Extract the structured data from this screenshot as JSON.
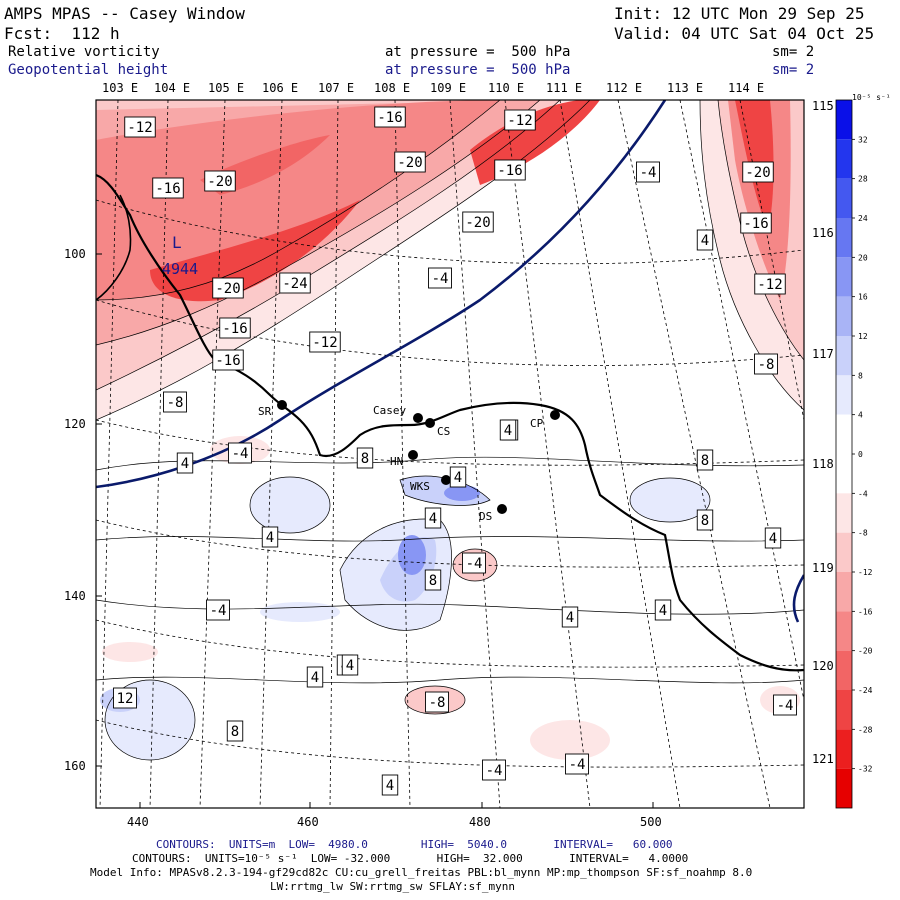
{
  "header": {
    "title": "AMPS MPAS -- Casey Window",
    "init": "Init: 12 UTC Mon 29 Sep 25",
    "fcst": "Fcst:  112 h",
    "valid": "Valid: 04 UTC Sat 04 Oct 25",
    "field1_name": "Relative vorticity",
    "field1_level": "at pressure =  500 hPa",
    "field1_sm": "sm= 2",
    "field2_name": "Geopotential height",
    "field2_level": "at pressure =  500 hPa",
    "field2_sm": "sm= 2"
  },
  "map": {
    "lon_labels_top": [
      "103 E",
      "104 E",
      "105 E",
      "106 E",
      "107 E",
      "108 E",
      "109 E",
      "110 E",
      "111 E",
      "112 E",
      "113 E",
      "114 E"
    ],
    "lon_labels_right": [
      "115 E",
      "116 E",
      "117 E",
      "118 E",
      "119 E",
      "120 E",
      "121 E"
    ],
    "x_ticks": [
      "440",
      "460",
      "480",
      "500"
    ],
    "y_ticks": [
      "100",
      "120",
      "140",
      "160"
    ],
    "stations": [
      {
        "code": "SR"
      },
      {
        "code": "Casey"
      },
      {
        "code": "CS"
      },
      {
        "code": "CP"
      },
      {
        "code": "HN"
      },
      {
        "code": "WKS"
      },
      {
        "code": "DS"
      }
    ],
    "low_center": {
      "symbol": "L",
      "value": "4944"
    },
    "contour_labels": [
      "-12",
      "-16",
      "-20",
      "-16",
      "-12",
      "-20",
      "-16",
      "-20",
      "-24",
      "-20",
      "-16",
      "-16",
      "-12",
      "-4",
      "-8",
      "-4",
      "4",
      "-20",
      "-16",
      "-12",
      "-8",
      "-4",
      "4",
      "8",
      "4",
      "4",
      "8",
      "4",
      "4",
      "8",
      "-4",
      "8",
      "-4",
      "4",
      "4",
      "4",
      "4",
      "12",
      "8",
      "-8",
      "-4",
      "-4",
      "4",
      "-4",
      "4",
      "4",
      "4"
    ]
  },
  "colorbar": {
    "unit": "10⁻⁵ s⁻¹",
    "ticks": [
      "32",
      "28",
      "24",
      "20",
      "16",
      "12",
      "8",
      "4",
      "0",
      "-4",
      "-8",
      "-12",
      "-16",
      "-20",
      "-24",
      "-28",
      "-32"
    ],
    "colors": [
      "#0a10e8",
      "#2336ee",
      "#4458f0",
      "#6677f2",
      "#8896f4",
      "#a9b4f6",
      "#c9d1fa",
      "#e6eafd",
      "#ffffff",
      "#ffffff",
      "#fde6e6",
      "#fbc9c9",
      "#f8a8a8",
      "#f58787",
      "#f26565",
      "#ef4444",
      "#ec1f1f",
      "#e60000"
    ]
  },
  "footer": {
    "contours1": "CONTOURS:  UNITS=m  LOW=  4980.0        HIGH=  5040.0       INTERVAL=   60.000",
    "contours2": "CONTOURS:  UNITS=10⁻⁵ s⁻¹  LOW= -32.000       HIGH=  32.000       INTERVAL=   4.0000",
    "model_info": "Model Info: MPASv8.2.3-194-gf29cd82c CU:cu_grell_freitas PBL:bl_mynn MP:mp_thompson SF:sf_noahmp 8.0",
    "model_info2": "LW:rrtmg_lw SW:rrtmg_sw SFLAY:sf_mynn"
  }
}
